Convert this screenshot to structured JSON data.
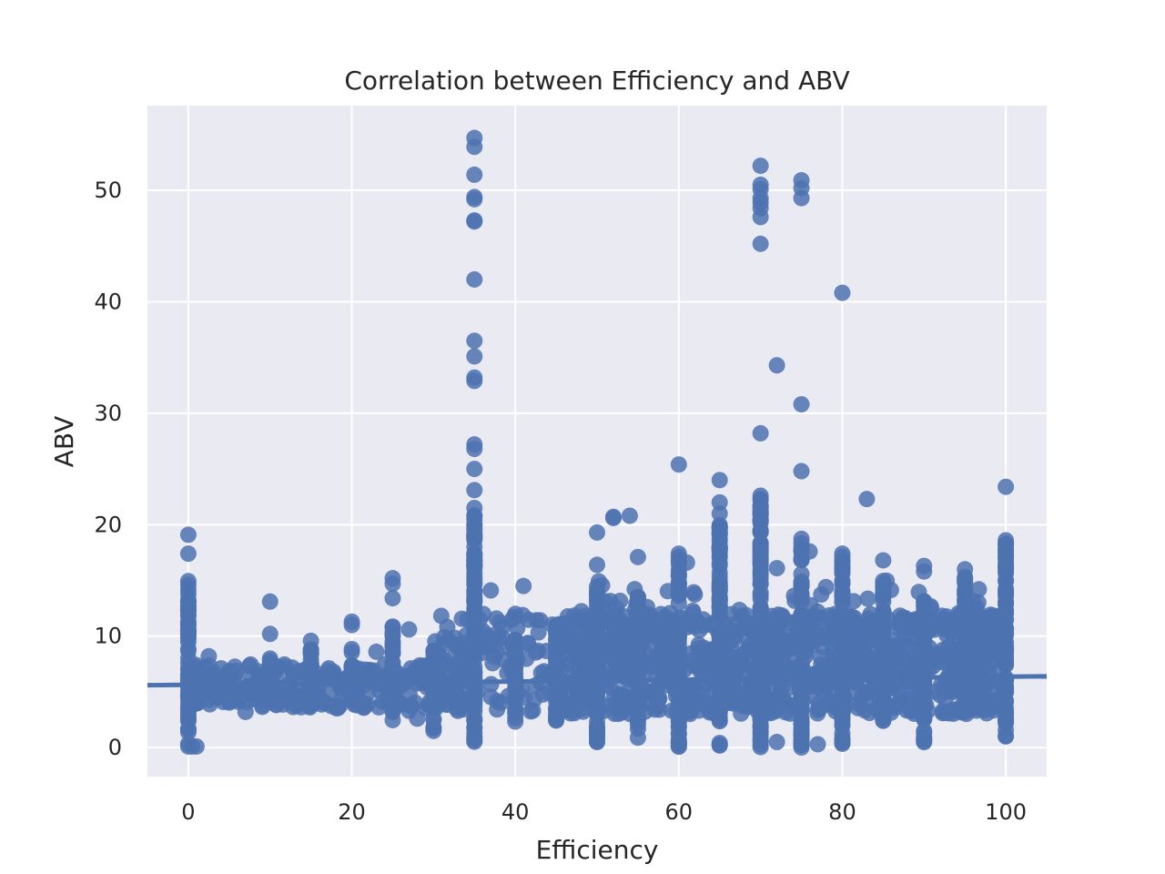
{
  "chart_data": {
    "type": "scatter",
    "title": "Correlation between Efficiency and ABV",
    "xlabel": "Efficiency",
    "ylabel": "ABV",
    "xlim": [
      -5,
      105
    ],
    "ylim": [
      -2.6,
      57.6
    ],
    "xticks": [
      0,
      20,
      40,
      60,
      80,
      100
    ],
    "yticks": [
      0,
      10,
      20,
      30,
      40,
      50
    ],
    "grid": true,
    "colors": {
      "background": "#EAEAF2",
      "grid": "#FFFFFF",
      "marker": "#4C72B0"
    },
    "regression_line": {
      "x": [
        -5,
        105
      ],
      "y": [
        5.6,
        6.4
      ]
    },
    "points_columns": [
      {
        "x": 0,
        "y_min": 0,
        "y_max": 15
      },
      {
        "x": 1,
        "y_min": 4,
        "y_max": 8
      },
      {
        "x": 5,
        "y_min": 4,
        "y_max": 7
      },
      {
        "x": 10,
        "y_min": 4.5,
        "y_max": 8
      },
      {
        "x": 15,
        "y_min": 3.8,
        "y_max": 9.6
      },
      {
        "x": 20,
        "y_min": 3.6,
        "y_max": 9
      },
      {
        "x": 25,
        "y_min": 2.4,
        "y_max": 11
      },
      {
        "x": 30,
        "y_min": 1.5,
        "y_max": 9.2
      },
      {
        "x": 35,
        "y_min": 0,
        "y_max": 21
      },
      {
        "x": 40,
        "y_min": 2.3,
        "y_max": 9.8
      },
      {
        "x": 45,
        "y_min": 2.2,
        "y_max": 11
      },
      {
        "x": 50,
        "y_min": 0.3,
        "y_max": 15
      },
      {
        "x": 55,
        "y_min": 0.8,
        "y_max": 14
      },
      {
        "x": 60,
        "y_min": 0,
        "y_max": 17.5
      },
      {
        "x": 65,
        "y_min": 0,
        "y_max": 20
      },
      {
        "x": 70,
        "y_min": 0,
        "y_max": 23
      },
      {
        "x": 75,
        "y_min": 0,
        "y_max": 20
      },
      {
        "x": 80,
        "y_min": 0,
        "y_max": 17.5
      },
      {
        "x": 85,
        "y_min": 2.2,
        "y_max": 15
      },
      {
        "x": 90,
        "y_min": 0,
        "y_max": 13.5
      },
      {
        "x": 95,
        "y_min": 3.2,
        "y_max": 16
      },
      {
        "x": 100,
        "y_min": 1,
        "y_max": 18.8
      }
    ],
    "points": [
      [
        0,
        19.1
      ],
      [
        0,
        17.4
      ],
      [
        0,
        0.1
      ],
      [
        0.5,
        0.1
      ],
      [
        1,
        0.1
      ],
      [
        2.5,
        8.2
      ],
      [
        7,
        3.2
      ],
      [
        7.5,
        6.5
      ],
      [
        10,
        13.1
      ],
      [
        10,
        10.2
      ],
      [
        13,
        4.3
      ],
      [
        18,
        3.8
      ],
      [
        20,
        11.3
      ],
      [
        20,
        11.0
      ],
      [
        23,
        8.6
      ],
      [
        25,
        15.2
      ],
      [
        25,
        14.7
      ],
      [
        25,
        13.4
      ],
      [
        27,
        10.6
      ],
      [
        27,
        3.3
      ],
      [
        28,
        2.6
      ],
      [
        30,
        1.5
      ],
      [
        33,
        9.0
      ],
      [
        34,
        10.1
      ],
      [
        35,
        54.7
      ],
      [
        35,
        53.9
      ],
      [
        35,
        51.4
      ],
      [
        35,
        49.4
      ],
      [
        35,
        49.2
      ],
      [
        35,
        47.3
      ],
      [
        35,
        47.2
      ],
      [
        35,
        42.0
      ],
      [
        35,
        36.5
      ],
      [
        35,
        35.1
      ],
      [
        35,
        33.2
      ],
      [
        35,
        32.9
      ],
      [
        35,
        27.2
      ],
      [
        35,
        26.8
      ],
      [
        35,
        25.0
      ],
      [
        35,
        23.1
      ],
      [
        35,
        21.5
      ],
      [
        37,
        14.1
      ],
      [
        38,
        9.8
      ],
      [
        40,
        12.0
      ],
      [
        41,
        14.5
      ],
      [
        46,
        11.1
      ],
      [
        50,
        19.3
      ],
      [
        50,
        16.4
      ],
      [
        52,
        20.7
      ],
      [
        52,
        20.6
      ],
      [
        54,
        20.8
      ],
      [
        55,
        17.1
      ],
      [
        60,
        25.4
      ],
      [
        60,
        17.4
      ],
      [
        61,
        16.6
      ],
      [
        63,
        11.5
      ],
      [
        65,
        24.0
      ],
      [
        65,
        22.0
      ],
      [
        65,
        21.0
      ],
      [
        65,
        19.7
      ],
      [
        65,
        17.6
      ],
      [
        70,
        52.2
      ],
      [
        70,
        50.5
      ],
      [
        70,
        50.1
      ],
      [
        70,
        49.3
      ],
      [
        70,
        48.9
      ],
      [
        70,
        48.4
      ],
      [
        70,
        47.6
      ],
      [
        70,
        45.2
      ],
      [
        70,
        28.2
      ],
      [
        70,
        22.6
      ],
      [
        70,
        21.7
      ],
      [
        70,
        20.9
      ],
      [
        72,
        34.3
      ],
      [
        72,
        16.1
      ],
      [
        72,
        0.5
      ],
      [
        75,
        50.9
      ],
      [
        75,
        50.2
      ],
      [
        75,
        49.3
      ],
      [
        75,
        30.8
      ],
      [
        75,
        24.8
      ],
      [
        76,
        17.6
      ],
      [
        77,
        0.3
      ],
      [
        78,
        14.4
      ],
      [
        80,
        40.8
      ],
      [
        80,
        17.4
      ],
      [
        83,
        22.3
      ],
      [
        85,
        16.8
      ],
      [
        90,
        16.3
      ],
      [
        90,
        15.8
      ],
      [
        93,
        11.4
      ],
      [
        95,
        16.0
      ],
      [
        97,
        3.5
      ],
      [
        97,
        11.0
      ],
      [
        100,
        23.4
      ],
      [
        100,
        18.6
      ],
      [
        100,
        18.3
      ],
      [
        100,
        1.0
      ]
    ]
  }
}
